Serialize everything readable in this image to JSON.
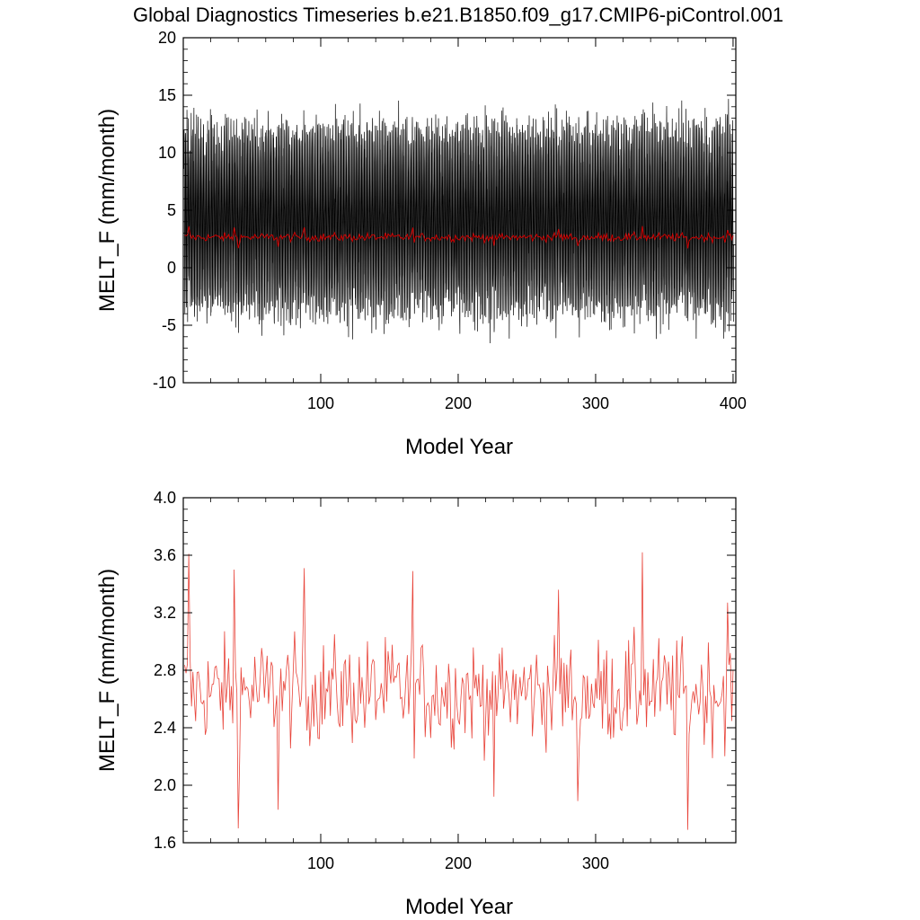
{
  "title": "Global Diagnostics Timeseries b.e21.B1850.f09_g17.CMIP6-piControl.001",
  "colors": {
    "monthly": "#000000",
    "annual": "#cc0000",
    "annual_bottom": "#e8443a"
  },
  "chart_data": [
    {
      "type": "line",
      "xlabel": "Model Year",
      "ylabel": "MELT_F (mm/month)",
      "xlim": [
        0,
        402
      ],
      "ylim": [
        -10,
        20
      ],
      "xticks": [
        100,
        200,
        300,
        400
      ],
      "xtick_labels": [
        "100",
        "200",
        "300",
        "400"
      ],
      "yticks": [
        -10,
        -5,
        0,
        5,
        10,
        15,
        20
      ],
      "ytick_labels": [
        "-10",
        "-5",
        "0",
        "5",
        "10",
        "15",
        "20"
      ],
      "series": [
        {
          "resolution": "monthly",
          "years": 400,
          "min": -8.8,
          "max": 16.7,
          "typical_low": -6.5,
          "typical_high": 12.5,
          "color": "#000000"
        },
        {
          "resolution": "annual",
          "years": 400,
          "mean": 2.65,
          "min": 1.7,
          "max": 3.6,
          "color": "#cc0000"
        }
      ]
    },
    {
      "type": "line",
      "xlabel": "Model Year",
      "ylabel": "MELT_F (mm/month)",
      "xlim": [
        0,
        402
      ],
      "ylim": [
        1.6,
        4.0
      ],
      "xticks": [
        100,
        200,
        300
      ],
      "xtick_labels": [
        "100",
        "200",
        "300"
      ],
      "yticks": [
        1.6,
        2.0,
        2.4,
        2.8,
        3.2,
        3.6,
        4.0
      ],
      "ytick_labels": [
        "1.6",
        "2.0",
        "2.4",
        "2.8",
        "3.2",
        "3.6",
        "4.0"
      ],
      "series": [
        {
          "resolution": "annual",
          "years": 400,
          "mean": 2.65,
          "color": "#e8443a",
          "notable": [
            [
              4,
              3.61
            ],
            [
              37,
              3.5
            ],
            [
              40,
              1.7
            ],
            [
              69,
              1.83
            ],
            [
              88,
              3.51
            ],
            [
              167,
              3.49
            ],
            [
              226,
              1.92
            ],
            [
              273,
              3.36
            ],
            [
              287,
              1.89
            ],
            [
              334,
              3.62
            ],
            [
              367,
              1.69
            ],
            [
              396,
              3.27
            ]
          ]
        }
      ]
    }
  ]
}
